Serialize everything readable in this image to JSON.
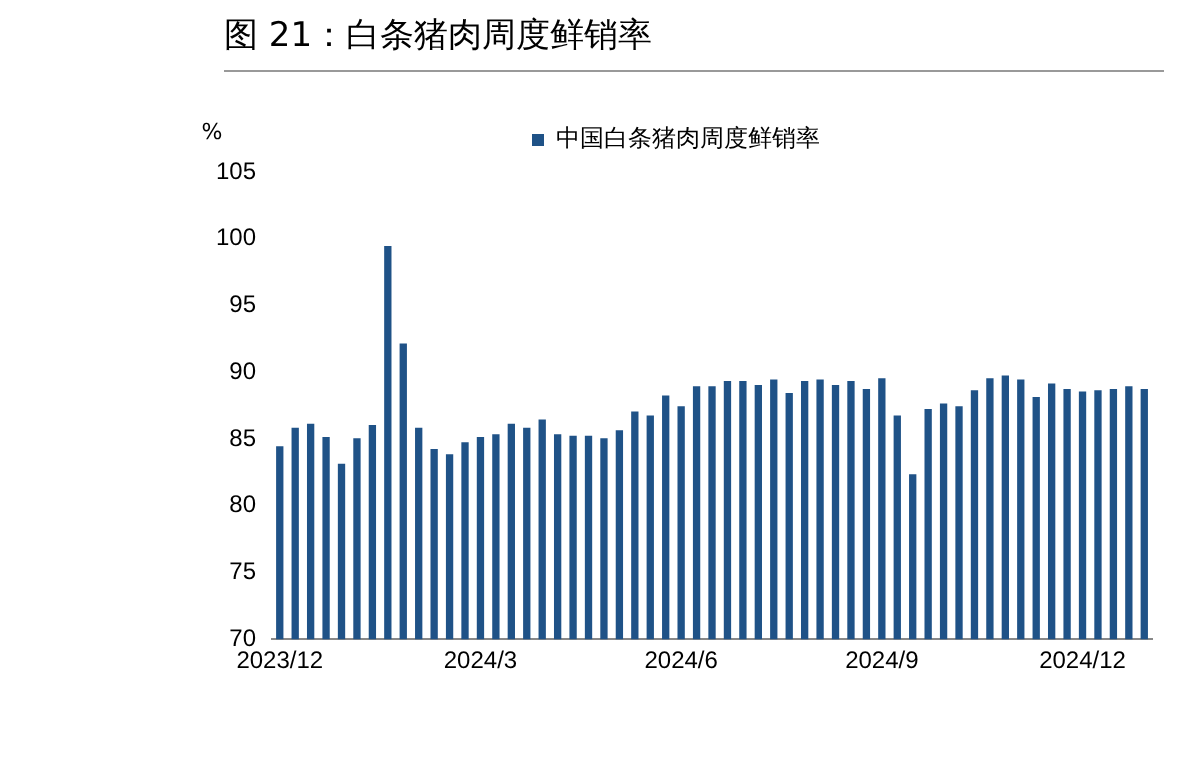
{
  "chart_data": {
    "type": "bar",
    "title": "图 21：白条猪肉周度鲜销率",
    "ylabel": "%",
    "categories": [
      "2023/12",
      null,
      null,
      null,
      null,
      null,
      null,
      null,
      null,
      null,
      null,
      null,
      null,
      "2024/3",
      null,
      null,
      null,
      null,
      null,
      null,
      null,
      null,
      null,
      null,
      null,
      null,
      "2024/6",
      null,
      null,
      null,
      null,
      null,
      null,
      null,
      null,
      null,
      null,
      null,
      null,
      "2024/9",
      null,
      null,
      null,
      null,
      null,
      null,
      null,
      null,
      null,
      null,
      null,
      null,
      "2024/12",
      null,
      null,
      null,
      null
    ],
    "series": [
      {
        "name": "中国白条猪肉周度鲜销率",
        "color": "#1f5287",
        "values": [
          84.4,
          85.8,
          86.1,
          85.1,
          83.1,
          85.0,
          86.0,
          99.4,
          92.1,
          85.8,
          84.2,
          83.8,
          84.7,
          85.1,
          85.3,
          86.1,
          85.8,
          86.4,
          85.3,
          85.2,
          85.2,
          85.0,
          85.6,
          87.0,
          86.7,
          88.2,
          87.4,
          88.9,
          88.9,
          89.3,
          89.3,
          89.0,
          89.4,
          88.4,
          89.3,
          89.4,
          89.0,
          89.3,
          88.7,
          89.5,
          86.7,
          82.3,
          87.2,
          87.6,
          87.4,
          88.6,
          89.5,
          89.7,
          89.4,
          88.1,
          89.1,
          88.7,
          88.5,
          88.6,
          88.7,
          88.9,
          88.7
        ]
      }
    ],
    "ylim": [
      70,
      105
    ],
    "yticks": [
      70,
      75,
      80,
      85,
      90,
      95,
      100,
      105
    ],
    "grid": false,
    "legend": "top"
  }
}
